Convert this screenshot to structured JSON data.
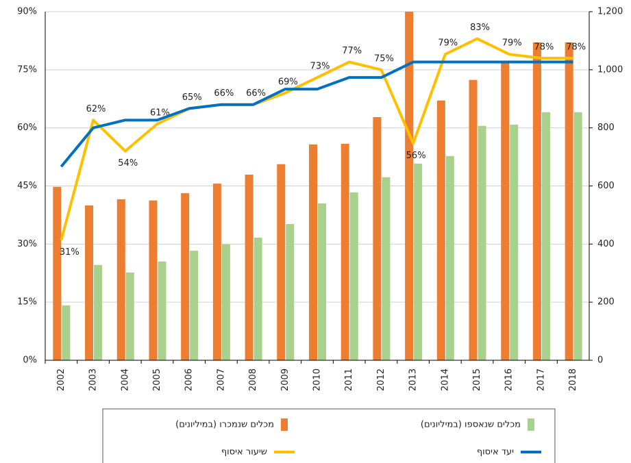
{
  "chart_data": {
    "type": "bar-line",
    "categories": [
      "2002",
      "2003",
      "2004",
      "2005",
      "2006",
      "2007",
      "2008",
      "2009",
      "2010",
      "2011",
      "2012",
      "2013",
      "2014",
      "2015",
      "2016",
      "2017",
      "2018"
    ],
    "series": [
      {
        "name": "מכלים שנמכרו (במיליונים)",
        "color": "#ed7d31",
        "kind": "bar",
        "axis": "y2",
        "values": [
          597,
          533,
          554,
          550,
          575,
          608,
          639,
          675,
          743,
          745,
          837,
          1200,
          894,
          965,
          1026,
          1094,
          1094
        ]
      },
      {
        "name": "מכלים שנאספו (במיליונים)",
        "color": "#a9d18e",
        "kind": "bar",
        "axis": "y2",
        "values": [
          189,
          328,
          302,
          340,
          377,
          399,
          422,
          469,
          540,
          578,
          630,
          677,
          703,
          807,
          811,
          854,
          854
        ]
      },
      {
        "name": "שיעור איסוף",
        "color": "#ffc000",
        "kind": "line",
        "values": [
          31,
          62,
          54,
          61,
          65,
          66,
          66,
          69,
          73,
          77,
          75,
          56,
          79,
          83,
          79,
          78,
          78
        ],
        "value_labels": [
          "31%",
          "62%",
          "54%",
          "61%",
          "65%",
          "66%",
          "66%",
          "69%",
          "73%",
          "77%",
          "75%",
          "56%",
          "79%",
          "83%",
          "79%",
          "78%",
          "78%"
        ]
      },
      {
        "name": "יעד איסוף",
        "color": "#0070c0",
        "kind": "line",
        "values": [
          50,
          60,
          62,
          62,
          65,
          66,
          66,
          70,
          70,
          73,
          73,
          77,
          77,
          77,
          77,
          77,
          77
        ]
      }
    ],
    "ylim": [
      0,
      90
    ],
    "yticks": [
      {
        "value": 0,
        "label": "0%"
      },
      {
        "value": 15,
        "label": "15%"
      },
      {
        "value": 30,
        "label": "30%"
      },
      {
        "value": 45,
        "label": "45%"
      },
      {
        "value": 60,
        "label": "60%"
      },
      {
        "value": 75,
        "label": "75%"
      },
      {
        "value": 90,
        "label": "90%"
      }
    ],
    "y2lim": [
      0,
      1200
    ],
    "y2ticks": [
      0,
      200,
      400,
      600,
      800,
      {
        "value": 1000,
        "label": "1,000"
      },
      {
        "value": 1200,
        "label": "1,200"
      }
    ],
    "grid": true,
    "legend": "bottom"
  }
}
